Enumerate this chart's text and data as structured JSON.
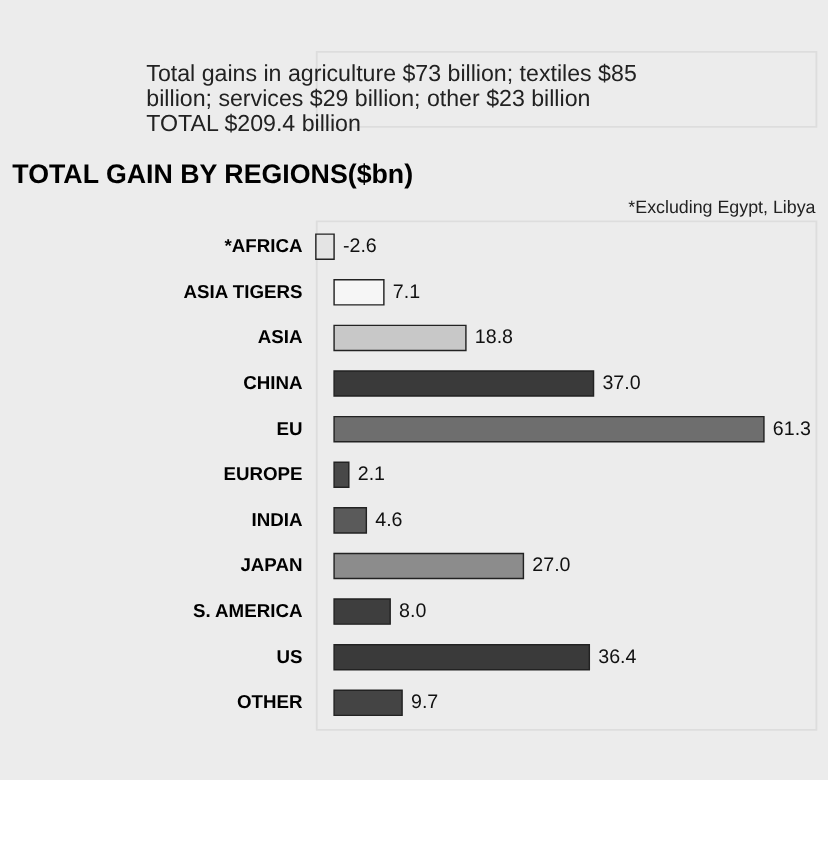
{
  "chart_data": {
    "type": "bar",
    "orientation": "horizontal",
    "title": "TOTAL GAIN BY REGIONS($bn)",
    "categories": [
      "*AFRICA",
      "ASIA TIGERS",
      "ASIA",
      "CHINA",
      "EU",
      "EUROPE",
      "INDIA",
      "JAPAN",
      "S. AMERICA",
      "US",
      "OTHER"
    ],
    "values": [
      -2.6,
      7.1,
      18.8,
      37.0,
      61.3,
      2.1,
      4.6,
      27.0,
      8.0,
      36.4,
      9.7
    ],
    "colors": [
      "#e4e4e4",
      "#f6f6f6",
      "#c8c8c8",
      "#3a3a3a",
      "#6e6e6e",
      "#484848",
      "#5a5a5a",
      "#8c8c8c",
      "#3e3e3e",
      "#3a3a3a",
      "#444444"
    ],
    "value_labels": [
      "-2.6",
      "7.1",
      "18.8",
      "37.0",
      "61.3",
      "2.1",
      "4.6",
      "27.0",
      "8.0",
      "36.4",
      "9.7"
    ],
    "tick_labels": "y",
    "annotations": [
      "Total gains in agriculture $73 billion; textiles $85 billion; services $29 billion; other $23 billion",
      "TOTAL  $209.4 billion",
      "*Excluding Egypt, Libya"
    ]
  }
}
